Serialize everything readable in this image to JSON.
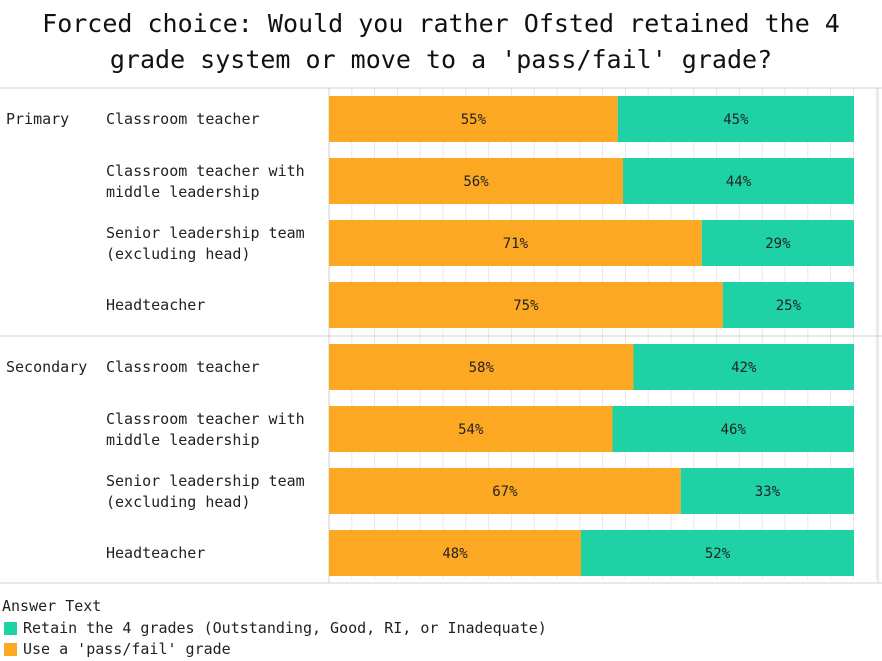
{
  "chart_data": {
    "type": "bar",
    "orientation": "horizontal",
    "stacked": true,
    "normalized": true,
    "title": "Forced choice: Would you rather Ofsted retained the 4 grade system or move to a 'pass/fail' grade?",
    "xlim": [
      0,
      100
    ],
    "grid": true,
    "legend": {
      "title": "Answer Text",
      "placement": "bottom-left",
      "entries": [
        {
          "name": "Retain the 4 grades (Outstanding, Good, RI, or Inadequate)",
          "color": "#1fd2a5"
        },
        {
          "name": "Use a 'pass/fail' grade",
          "color": "#fca823"
        }
      ]
    },
    "series_colors": {
      "pass_fail": "#fca823",
      "retain": "#1fd2a5"
    },
    "groups": [
      {
        "name": "Primary",
        "rows": [
          {
            "label": [
              "Classroom teacher"
            ],
            "pass_fail": 55,
            "retain": 45,
            "pass_fail_label": "55%",
            "retain_label": "45%"
          },
          {
            "label": [
              "Classroom teacher with",
              "middle leadership"
            ],
            "pass_fail": 56,
            "retain": 44,
            "pass_fail_label": "56%",
            "retain_label": "44%"
          },
          {
            "label": [
              "Senior leadership team",
              "(excluding head)"
            ],
            "pass_fail": 71,
            "retain": 29,
            "pass_fail_label": "71%",
            "retain_label": "29%"
          },
          {
            "label": [
              "Headteacher"
            ],
            "pass_fail": 75,
            "retain": 25,
            "pass_fail_label": "75%",
            "retain_label": "25%"
          }
        ]
      },
      {
        "name": "Secondary",
        "rows": [
          {
            "label": [
              "Classroom teacher"
            ],
            "pass_fail": 58,
            "retain": 42,
            "pass_fail_label": "58%",
            "retain_label": "42%"
          },
          {
            "label": [
              "Classroom teacher with",
              "middle leadership"
            ],
            "pass_fail": 54,
            "retain": 46,
            "pass_fail_label": "54%",
            "retain_label": "46%"
          },
          {
            "label": [
              "Senior leadership team",
              "(excluding head)"
            ],
            "pass_fail": 67,
            "retain": 33,
            "pass_fail_label": "67%",
            "retain_label": "33%"
          },
          {
            "label": [
              "Headteacher"
            ],
            "pass_fail": 48,
            "retain": 52,
            "pass_fail_label": "48%",
            "retain_label": "52%"
          }
        ]
      }
    ]
  }
}
